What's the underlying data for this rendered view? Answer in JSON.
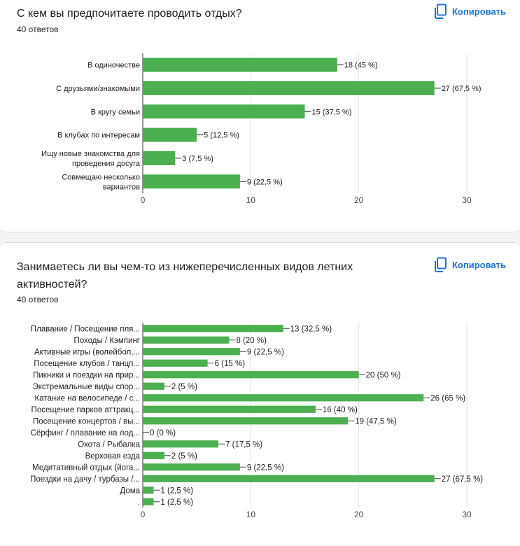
{
  "copy_label": "Копировать",
  "colors": {
    "bar": "#4caf50",
    "accent": "#1a73e8",
    "grid": "#e0e0e0"
  },
  "icons": {
    "copy": "copy-icon"
  },
  "questions": [
    {
      "title": "С кем вы предпочитаете проводить отдых?",
      "count": "40 ответов"
    },
    {
      "title": "Занимаетесь ли вы чем-то из нижеперечисленных видов летних активностей?",
      "count": "40 ответов"
    }
  ],
  "chart_data": [
    {
      "type": "bar",
      "orientation": "horizontal",
      "categories": [
        "В одиночестве",
        "С друзьями/знакомыми",
        "В кругу семьи",
        "В клубах по интересам",
        "Ищу новые знакомства для проведения досуга",
        "Совмещаю несколько вариантов"
      ],
      "values": [
        18,
        27,
        15,
        5,
        3,
        9
      ],
      "data_labels": [
        "18 (45 %)",
        "27 (67,5 %)",
        "15 (37,5 %)",
        "5 (12,5 %)",
        "3 (7,5 %)",
        "9 (22,5 %)"
      ],
      "xlim": [
        0,
        30
      ],
      "xticks": [
        0,
        10,
        20,
        30
      ],
      "grid": true
    },
    {
      "type": "bar",
      "orientation": "horizontal",
      "categories": [
        "Плавание / Посещение пля...",
        "Походы / Кэмпинг",
        "Активные игры (волейбол,...",
        "Посещение клубов / танцп...",
        "Пикники и поездки на прир...",
        "Экстремальные виды спор...",
        "Катание на велосипеде / с...",
        "Посещение парков аттракц...",
        "Посещение концертов / вы...",
        "Сёрфинг / плавание на лод...",
        "Охота / Рыбалка",
        "Верховая езда",
        "Медитативный отдых (йога...",
        "Поездки на дачу / турбазы /...",
        "Дома",
        "."
      ],
      "values": [
        13,
        8,
        9,
        6,
        20,
        2,
        26,
        16,
        19,
        0,
        7,
        2,
        9,
        27,
        1,
        1
      ],
      "data_labels": [
        "13 (32,5 %)",
        "8 (20 %)",
        "9 (22,5 %)",
        "6 (15 %)",
        "20 (50 %)",
        "2 (5 %)",
        "26 (65 %)",
        "16 (40 %)",
        "19 (47,5 %)",
        "0 (0 %)",
        "7 (17,5 %)",
        "2 (5 %)",
        "9 (22,5 %)",
        "27 (67,5 %)",
        "1 (2,5 %)",
        "1 (2,5 %)"
      ],
      "xlim": [
        0,
        30
      ],
      "xticks": [
        0,
        10,
        20,
        30
      ],
      "grid": true
    }
  ]
}
